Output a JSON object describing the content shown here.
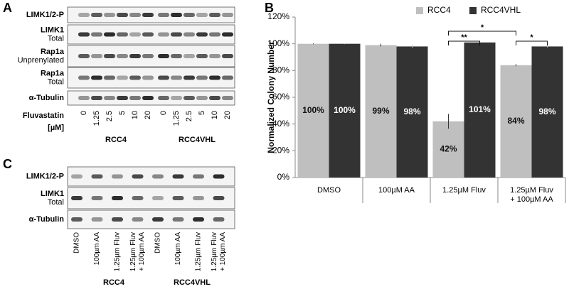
{
  "panel_a": {
    "label": "A",
    "rows": [
      {
        "name": "LIMK1/2-P"
      },
      {
        "name": "LIMK1",
        "sub": "Total"
      },
      {
        "name": "Rap1a",
        "sub": "Unprenylated"
      },
      {
        "name": "Rap1a",
        "sub": "Total"
      },
      {
        "name": "α-Tubulin"
      }
    ],
    "treatment": "Fluvastatin",
    "unit": "[µM]",
    "lanes": [
      "0",
      "1.25",
      "2.5",
      "5",
      "10",
      "20",
      "0",
      "1.25",
      "2.5",
      "5",
      "10",
      "20"
    ],
    "groups": [
      "RCC4",
      "RCC4VHL"
    ]
  },
  "panel_c": {
    "label": "C",
    "rows": [
      {
        "name": "LIMK1/2-P"
      },
      {
        "name": "LIMK1",
        "sub": "Total"
      },
      {
        "name": "α-Tubulin"
      }
    ],
    "lanes": [
      [
        "DMSO"
      ],
      [
        "100µm AA"
      ],
      [
        "1.25µm Fluv"
      ],
      [
        "1.25µm Fluv",
        "+ 100µm AA"
      ],
      [
        "DMSO"
      ],
      [
        "100µm AA"
      ],
      [
        "1.25µm Fluv"
      ],
      [
        "1.25µm Fluv",
        "+ 100µm AA"
      ]
    ],
    "groups": [
      "RCC4",
      "RCC4VHL"
    ]
  },
  "chart_data": {
    "type": "bar",
    "panel_label": "B",
    "y_label": "Normalized Colony Number",
    "categories": [
      "DMSO",
      "100µM AA",
      "1.25µM Fluv",
      "1.25µM Fluv\n+ 100µM AA"
    ],
    "series": [
      {
        "name": "RCC4",
        "color": "#bfbfbf",
        "values": [
          100,
          99,
          42,
          84
        ],
        "value_labels": [
          "100%",
          "99%",
          "42%",
          "84%"
        ],
        "errors": [
          0.3,
          1,
          5.5,
          0.8
        ]
      },
      {
        "name": "RCC4VHL",
        "color": "#333333",
        "values": [
          100,
          98,
          101,
          98
        ],
        "value_labels": [
          "100%",
          "98%",
          "101%",
          "98%"
        ],
        "errors": [
          0.3,
          1,
          1.2,
          0.8
        ]
      }
    ],
    "ylim": [
      0,
      120
    ],
    "yticks": [
      {
        "value": 0,
        "label": "0%"
      },
      {
        "value": 20,
        "label": "20%"
      },
      {
        "value": 40,
        "label": "40%"
      },
      {
        "value": 60,
        "label": "60%"
      },
      {
        "value": 80,
        "label": "80%"
      },
      {
        "value": 100,
        "label": "100%"
      },
      {
        "value": 120,
        "label": "120%"
      }
    ],
    "legend": "top",
    "annotations": [
      "**",
      "*",
      "*"
    ]
  }
}
